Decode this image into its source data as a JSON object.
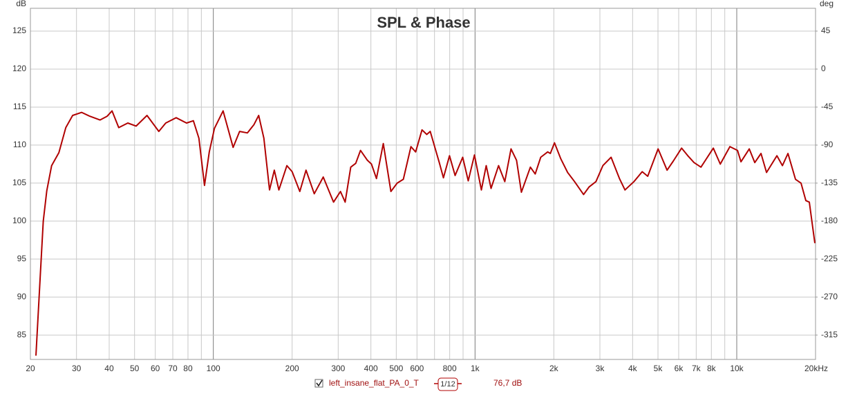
{
  "chart_data": {
    "type": "line",
    "title": "SPL & Phase",
    "y_unit": "dB",
    "y2_unit": "deg",
    "log_x": true,
    "grid": true,
    "xlim": [
      20,
      20000
    ],
    "ylim": [
      81.8,
      128
    ],
    "y2lim": [
      -343.8,
      72
    ],
    "xticks": [
      20,
      30,
      40,
      50,
      60,
      70,
      80,
      100,
      200,
      300,
      400,
      500,
      600,
      800,
      {
        "value": 1000,
        "label": "1k"
      },
      {
        "value": 2000,
        "label": "2k"
      },
      {
        "value": 3000,
        "label": "3k"
      },
      {
        "value": 4000,
        "label": "4k"
      },
      {
        "value": 5000,
        "label": "5k"
      },
      {
        "value": 6000,
        "label": "6k"
      },
      {
        "value": 7000,
        "label": "7k"
      },
      {
        "value": 8000,
        "label": "8k"
      },
      {
        "value": 10000,
        "label": "10k"
      },
      {
        "value": 20000,
        "label": "20kHz"
      }
    ],
    "xminorticks": [
      90,
      700,
      900,
      9000
    ],
    "yticks": [
      85,
      90,
      95,
      100,
      105,
      110,
      115,
      120,
      125
    ],
    "y2ticks": [
      -315,
      -270,
      -225,
      -180,
      -135,
      -90,
      -45,
      0,
      45
    ],
    "series": [
      {
        "name": "left_insane_flat_PA_0_T",
        "color": "#b00000",
        "checked": true,
        "smoothing": "1/12",
        "level": "76,7 dB",
        "x": [
          21.0,
          21.8,
          22.4,
          23.1,
          24.1,
          25.7,
          27.3,
          29.0,
          31.4,
          33.7,
          36.9,
          39.3,
          41.0,
          43.5,
          47.1,
          50.7,
          55.8,
          61.9,
          65.8,
          72.1,
          79.0,
          83.9,
          88.1,
          92.5,
          96.5,
          101,
          109,
          119,
          126,
          135,
          143,
          149,
          156,
          164,
          171,
          178,
          191,
          200,
          214,
          226,
          243,
          263,
          288,
          306,
          319,
          335,
          350,
          365,
          388,
          402,
          420,
          446,
          477,
          504,
          532,
          569,
          593,
          627,
          654,
          674,
          730,
          757,
          799,
          839,
          897,
          942,
          995,
          1057,
          1103,
          1151,
          1230,
          1299,
          1372,
          1441,
          1503,
          1627,
          1698,
          1782,
          1894,
          1940,
          2012,
          2126,
          2258,
          2400,
          2598,
          2728,
          2898,
          3080,
          3311,
          3562,
          3740,
          4048,
          4353,
          4570,
          5005,
          5418,
          5723,
          6154,
          6502,
          6868,
          7296,
          8138,
          8650,
          9418,
          10068,
          10376,
          11164,
          11720,
          12380,
          12996,
          14234,
          14944,
          15688,
          16770,
          17604,
          18370,
          18940,
          19880
        ],
        "values": [
          82.3,
          92.7,
          100,
          104,
          107.3,
          109,
          112.3,
          113.9,
          114.3,
          113.8,
          113.3,
          113.8,
          114.5,
          112.3,
          112.9,
          112.5,
          113.9,
          111.8,
          112.9,
          113.6,
          112.9,
          113.2,
          110.9,
          104.7,
          109.1,
          112.2,
          114.5,
          109.7,
          111.8,
          111.6,
          112.7,
          113.9,
          110.9,
          104.1,
          106.7,
          104.1,
          107.3,
          106.5,
          103.9,
          106.7,
          103.6,
          105.8,
          102.5,
          103.9,
          102.5,
          107.1,
          107.6,
          109.3,
          108,
          107.5,
          105.6,
          110.2,
          103.9,
          105,
          105.5,
          109.8,
          109.1,
          112,
          111.4,
          111.8,
          107.7,
          105.7,
          108.6,
          106,
          108.4,
          105.3,
          108.7,
          104.1,
          107.3,
          104.3,
          107.3,
          105.2,
          109.5,
          108,
          103.8,
          107.1,
          106.2,
          108.4,
          109.1,
          108.9,
          110.3,
          108.2,
          106.4,
          105.2,
          103.5,
          104.5,
          105.2,
          107.3,
          108.4,
          105.6,
          104.1,
          105.2,
          106.5,
          105.9,
          109.5,
          106.7,
          107.9,
          109.6,
          108.6,
          107.7,
          107.1,
          109.6,
          107.5,
          109.8,
          109.3,
          107.8,
          109.5,
          107.7,
          108.9,
          106.4,
          108.6,
          107.3,
          108.9,
          105.5,
          105,
          102.7,
          102.5,
          97.1
        ]
      }
    ]
  }
}
